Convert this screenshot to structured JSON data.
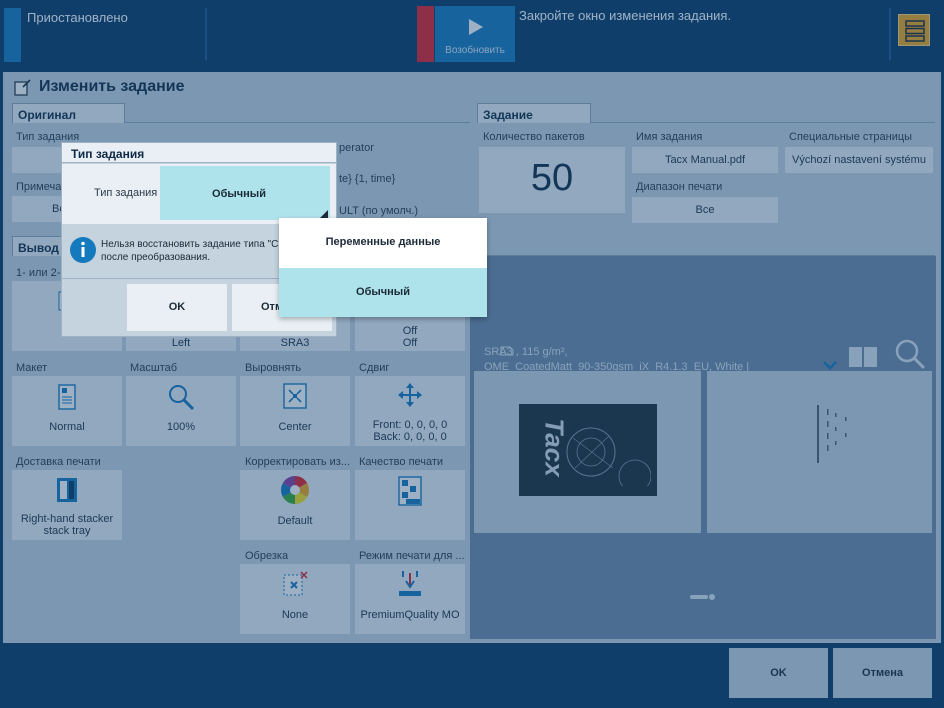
{
  "topbar": {
    "status": "Приостановлено",
    "resume_label": "Возобновить",
    "message": "Закройте окно изменения задания."
  },
  "title": "Изменить задание",
  "original": {
    "section": "Оригинал",
    "job_type_label": "Тип задания",
    "note_label": "Примеча",
    "note_value": "Вс",
    "operator": "perator",
    "date_time": "te} {1, time}",
    "default": "ULT (по умолч.)"
  },
  "job": {
    "section": "Задание",
    "packets_label": "Количество пакетов",
    "packets_value": "50",
    "name_label": "Имя задания",
    "name_value": "Tacx Manual.pdf",
    "range_label": "Диапазон печати",
    "range_value": "Все",
    "special_label": "Специальные страницы",
    "special_value": "Výchozí nastavení systému"
  },
  "output": {
    "section": "Вывод",
    "sides_label": "1- или 2-с",
    "sides_value": "2-",
    "left_value": "Left",
    "sra3_value": "SRA3",
    "off1": "Off",
    "off2": "Off",
    "layout_label": "Макет",
    "layout_value": "Normal",
    "scale_label": "Масштаб",
    "scale_value": "100%",
    "align_label": "Выровнять",
    "align_value": "Center",
    "shift_label": "Сдвиг",
    "shift_value1": "Front: 0, 0, 0, 0",
    "shift_value2": "Back: 0, 0, 0, 0",
    "delivery_label": "Доставка печати",
    "delivery_value1": "Right-hand stacker",
    "delivery_value2": "stack tray",
    "correct_label": "Корректировать из...",
    "correct_value": "Default",
    "quality_label": "Качество печати",
    "trim_label": "Обрезка",
    "trim_value": "None",
    "mode_label": "Режим печати для ...",
    "mode_value": "PremiumQuality MO"
  },
  "preview": {
    "media_line1": "SRA3 , 115 g/m²,",
    "media_line2": "OME_CoatedMatt_90-350gsm_iX_R4.1.3_EU, White |",
    "cover_text": "Tacx"
  },
  "footer": {
    "ok": "OK",
    "cancel": "Отмена"
  },
  "popup": {
    "title": "Тип задания",
    "field_label": "Тип задания",
    "field_value": "Обычный",
    "info_line1": "Нельзя восстановить задание типа \"С",
    "info_line2": "после преобразования.",
    "ok": "OK",
    "cancel_partial": "Отм"
  },
  "dropdown": {
    "options": [
      "Переменные данные",
      "Обычный"
    ],
    "selected": "Обычный"
  },
  "colors": {
    "topbar": "#0b3a66",
    "accent_blue": "#1579be",
    "alert_red": "#e3202d",
    "tile": "#e9eff4",
    "selected_option": "#aee3ec"
  }
}
